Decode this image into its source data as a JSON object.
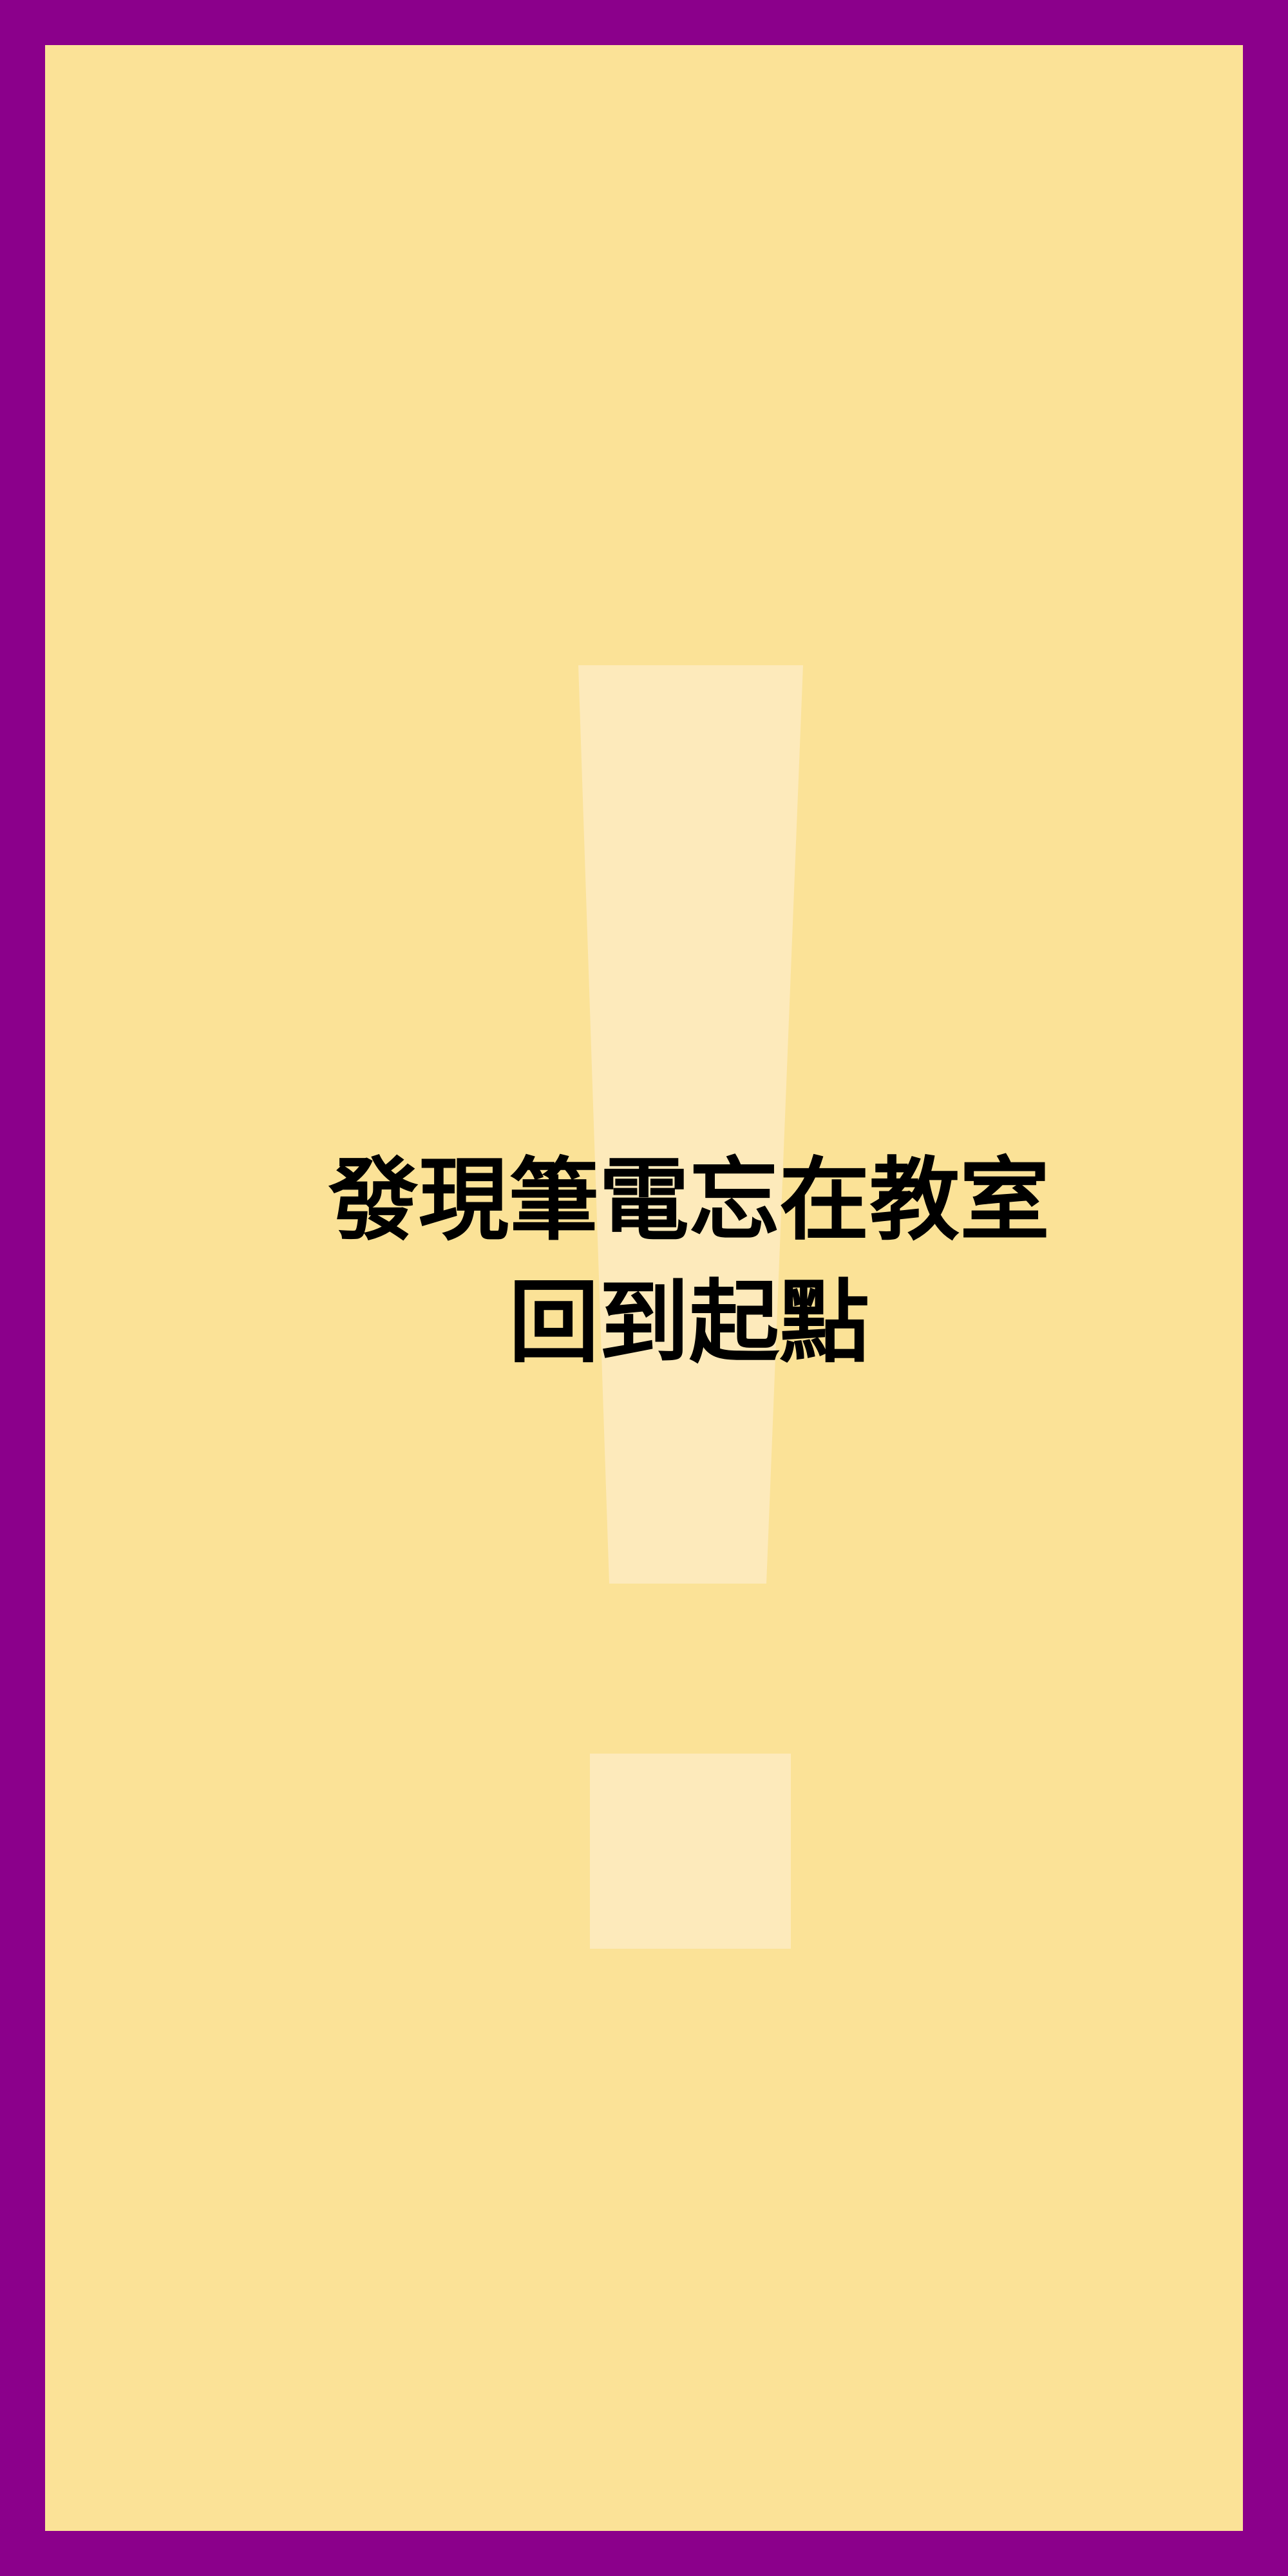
{
  "card": {
    "colors": {
      "border": "#8b008b",
      "background": "#fbe297",
      "icon": "#fdeabb",
      "text": "#000000"
    },
    "icon": "exclamation-icon",
    "lines": [
      "發現筆電忘在教室",
      "回到起點"
    ]
  }
}
